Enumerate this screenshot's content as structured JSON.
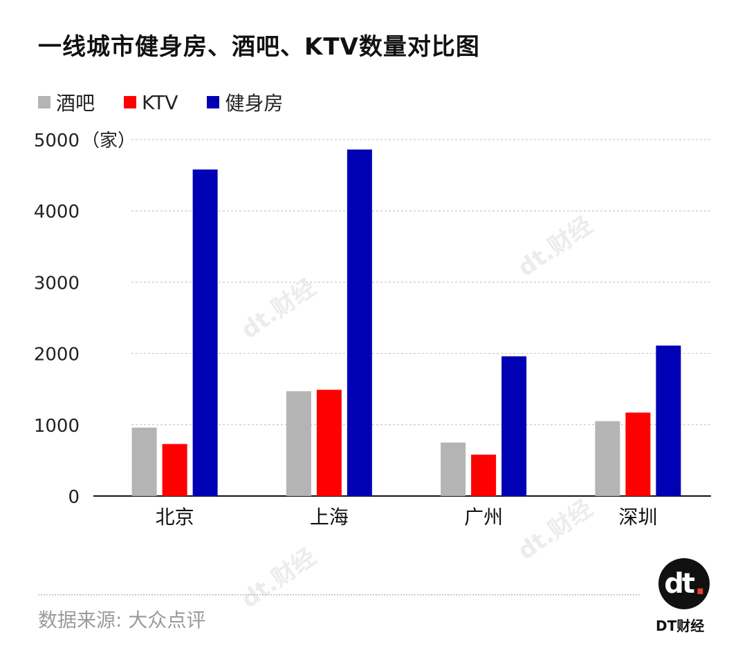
{
  "header": {
    "title": "一线城市健身房、酒吧、KTV数量对比图"
  },
  "footer": {
    "source": "数据来源: 大众点评"
  },
  "brand": {
    "logo_text": "dt",
    "name": "DT财经",
    "watermark": "dt.财经"
  },
  "chart_data": {
    "type": "bar",
    "title": "一线城市健身房、酒吧、KTV数量对比图",
    "categories": [
      "北京",
      "上海",
      "广州",
      "深圳"
    ],
    "series": [
      {
        "name": "酒吧",
        "color": "#b4b4b4",
        "values": [
          960,
          1470,
          750,
          1050
        ]
      },
      {
        "name": "KTV",
        "color": "#ff0000",
        "values": [
          730,
          1490,
          580,
          1170
        ]
      },
      {
        "name": "健身房",
        "color": "#0000b4",
        "values": [
          4580,
          4860,
          1960,
          2110
        ]
      }
    ],
    "ylabel": "（家）",
    "ylim": [
      0,
      5000
    ],
    "yticks": [
      0,
      1000,
      2000,
      3000,
      4000,
      5000
    ],
    "grid": true,
    "legend_position": "top-left"
  }
}
